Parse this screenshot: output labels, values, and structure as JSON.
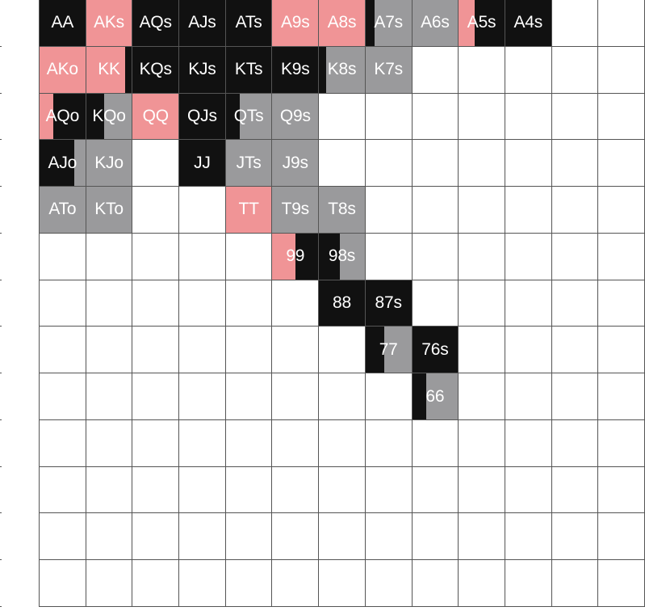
{
  "colors": {
    "black": "#111111",
    "gray": "#9a9a9c",
    "pink": "#f09496",
    "empty": "#ffffff",
    "grid_line": "#555555",
    "label": "#ffffff"
  },
  "grid": {
    "columns": 13,
    "rows": 13,
    "hands": [
      {
        "row": 0,
        "col": 0,
        "label": "AA",
        "mix": [
          [
            "black",
            1
          ]
        ]
      },
      {
        "row": 0,
        "col": 1,
        "label": "AKs",
        "mix": [
          [
            "pink",
            1
          ]
        ]
      },
      {
        "row": 0,
        "col": 2,
        "label": "AQs",
        "mix": [
          [
            "black",
            1
          ]
        ]
      },
      {
        "row": 0,
        "col": 3,
        "label": "AJs",
        "mix": [
          [
            "black",
            1
          ]
        ]
      },
      {
        "row": 0,
        "col": 4,
        "label": "ATs",
        "mix": [
          [
            "black",
            1
          ]
        ]
      },
      {
        "row": 0,
        "col": 5,
        "label": "A9s",
        "mix": [
          [
            "pink",
            1
          ]
        ]
      },
      {
        "row": 0,
        "col": 6,
        "label": "A8s",
        "mix": [
          [
            "pink",
            1
          ]
        ]
      },
      {
        "row": 0,
        "col": 7,
        "label": "A7s",
        "mix": [
          [
            "black",
            0.2
          ],
          [
            "gray",
            0.8
          ]
        ]
      },
      {
        "row": 0,
        "col": 8,
        "label": "A6s",
        "mix": [
          [
            "gray",
            1
          ]
        ]
      },
      {
        "row": 0,
        "col": 9,
        "label": "A5s",
        "mix": [
          [
            "pink",
            0.35
          ],
          [
            "black",
            0.65
          ]
        ]
      },
      {
        "row": 0,
        "col": 10,
        "label": "A4s",
        "mix": [
          [
            "black",
            1
          ]
        ]
      },
      {
        "row": 1,
        "col": 0,
        "label": "AKo",
        "mix": [
          [
            "pink",
            1
          ]
        ]
      },
      {
        "row": 1,
        "col": 1,
        "label": "KK",
        "mix": [
          [
            "pink",
            0.85
          ],
          [
            "black",
            0.15
          ]
        ]
      },
      {
        "row": 1,
        "col": 2,
        "label": "KQs",
        "mix": [
          [
            "black",
            1
          ]
        ]
      },
      {
        "row": 1,
        "col": 3,
        "label": "KJs",
        "mix": [
          [
            "black",
            1
          ]
        ]
      },
      {
        "row": 1,
        "col": 4,
        "label": "KTs",
        "mix": [
          [
            "black",
            1
          ]
        ]
      },
      {
        "row": 1,
        "col": 5,
        "label": "K9s",
        "mix": [
          [
            "black",
            1
          ]
        ]
      },
      {
        "row": 1,
        "col": 6,
        "label": "K8s",
        "mix": [
          [
            "black",
            0.15
          ],
          [
            "gray",
            0.85
          ]
        ]
      },
      {
        "row": 1,
        "col": 7,
        "label": "K7s",
        "mix": [
          [
            "gray",
            1
          ]
        ]
      },
      {
        "row": 2,
        "col": 0,
        "label": "AQo",
        "mix": [
          [
            "pink",
            0.3
          ],
          [
            "black",
            0.7
          ]
        ]
      },
      {
        "row": 2,
        "col": 1,
        "label": "KQo",
        "mix": [
          [
            "black",
            0.4
          ],
          [
            "gray",
            0.6
          ]
        ]
      },
      {
        "row": 2,
        "col": 2,
        "label": "QQ",
        "mix": [
          [
            "pink",
            1
          ]
        ]
      },
      {
        "row": 2,
        "col": 3,
        "label": "QJs",
        "mix": [
          [
            "black",
            1
          ]
        ]
      },
      {
        "row": 2,
        "col": 4,
        "label": "QTs",
        "mix": [
          [
            "black",
            0.3
          ],
          [
            "gray",
            0.7
          ]
        ]
      },
      {
        "row": 2,
        "col": 5,
        "label": "Q9s",
        "mix": [
          [
            "gray",
            1
          ]
        ]
      },
      {
        "row": 3,
        "col": 0,
        "label": "AJo",
        "mix": [
          [
            "black",
            0.75
          ],
          [
            "gray",
            0.25
          ]
        ]
      },
      {
        "row": 3,
        "col": 1,
        "label": "KJo",
        "mix": [
          [
            "gray",
            1
          ]
        ]
      },
      {
        "row": 3,
        "col": 3,
        "label": "JJ",
        "mix": [
          [
            "black",
            1
          ]
        ]
      },
      {
        "row": 3,
        "col": 4,
        "label": "JTs",
        "mix": [
          [
            "gray",
            1
          ]
        ]
      },
      {
        "row": 3,
        "col": 5,
        "label": "J9s",
        "mix": [
          [
            "gray",
            1
          ]
        ]
      },
      {
        "row": 4,
        "col": 0,
        "label": "ATo",
        "mix": [
          [
            "gray",
            1
          ]
        ]
      },
      {
        "row": 4,
        "col": 1,
        "label": "KTo",
        "mix": [
          [
            "gray",
            1
          ]
        ]
      },
      {
        "row": 4,
        "col": 4,
        "label": "TT",
        "mix": [
          [
            "pink",
            1
          ]
        ]
      },
      {
        "row": 4,
        "col": 5,
        "label": "T9s",
        "mix": [
          [
            "gray",
            1
          ]
        ]
      },
      {
        "row": 4,
        "col": 6,
        "label": "T8s",
        "mix": [
          [
            "gray",
            1
          ]
        ]
      },
      {
        "row": 5,
        "col": 5,
        "label": "99",
        "mix": [
          [
            "pink",
            0.5
          ],
          [
            "black",
            0.5
          ]
        ]
      },
      {
        "row": 5,
        "col": 6,
        "label": "98s",
        "mix": [
          [
            "black",
            0.45
          ],
          [
            "gray",
            0.55
          ]
        ]
      },
      {
        "row": 6,
        "col": 6,
        "label": "88",
        "mix": [
          [
            "black",
            1
          ]
        ]
      },
      {
        "row": 6,
        "col": 7,
        "label": "87s",
        "mix": [
          [
            "black",
            1
          ]
        ]
      },
      {
        "row": 7,
        "col": 7,
        "label": "77",
        "mix": [
          [
            "black",
            0.4
          ],
          [
            "gray",
            0.6
          ]
        ]
      },
      {
        "row": 7,
        "col": 8,
        "label": "76s",
        "mix": [
          [
            "black",
            1
          ]
        ]
      },
      {
        "row": 8,
        "col": 8,
        "label": "66",
        "mix": [
          [
            "black",
            0.3
          ],
          [
            "gray",
            0.7
          ]
        ]
      }
    ]
  }
}
